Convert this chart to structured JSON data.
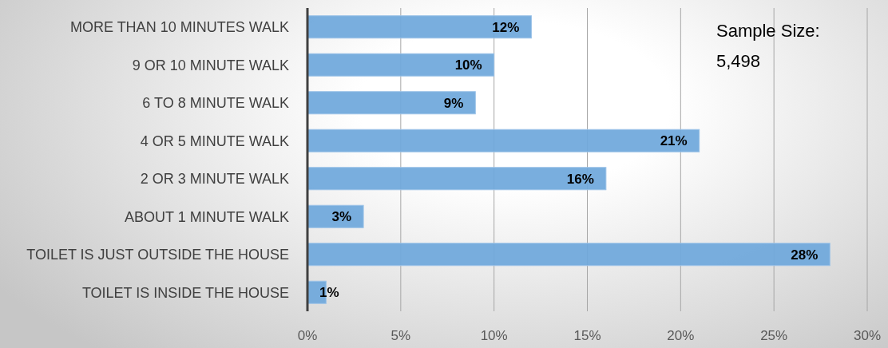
{
  "chart_data": {
    "type": "bar",
    "orientation": "horizontal",
    "categories": [
      "MORE THAN 10 MINUTES WALK",
      "9 OR 10 MINUTE WALK",
      "6 TO 8 MINUTE WALK",
      "4 OR 5 MINUTE WALK",
      "2 OR 3 MINUTE WALK",
      "ABOUT 1 MINUTE WALK",
      "TOILET IS JUST OUTSIDE THE HOUSE",
      "TOILET IS INSIDE THE HOUSE"
    ],
    "values": [
      12,
      10,
      9,
      21,
      16,
      3,
      28,
      1
    ],
    "color": "#6fa8dc",
    "value_labels": [
      "12%",
      "10%",
      "9%",
      "21%",
      "16%",
      "3%",
      "28%",
      "1%"
    ],
    "xlim": [
      0,
      30
    ],
    "xticks": [
      {
        "value": 0,
        "label": "0%"
      },
      {
        "value": 5,
        "label": "5%"
      },
      {
        "value": 10,
        "label": "10%"
      },
      {
        "value": 15,
        "label": "15%"
      },
      {
        "value": 20,
        "label": "20%"
      },
      {
        "value": 25,
        "label": "25%"
      },
      {
        "value": 30,
        "label": "30%"
      }
    ],
    "grid": "x",
    "annotations": [
      "Sample Size: 5,498"
    ]
  }
}
